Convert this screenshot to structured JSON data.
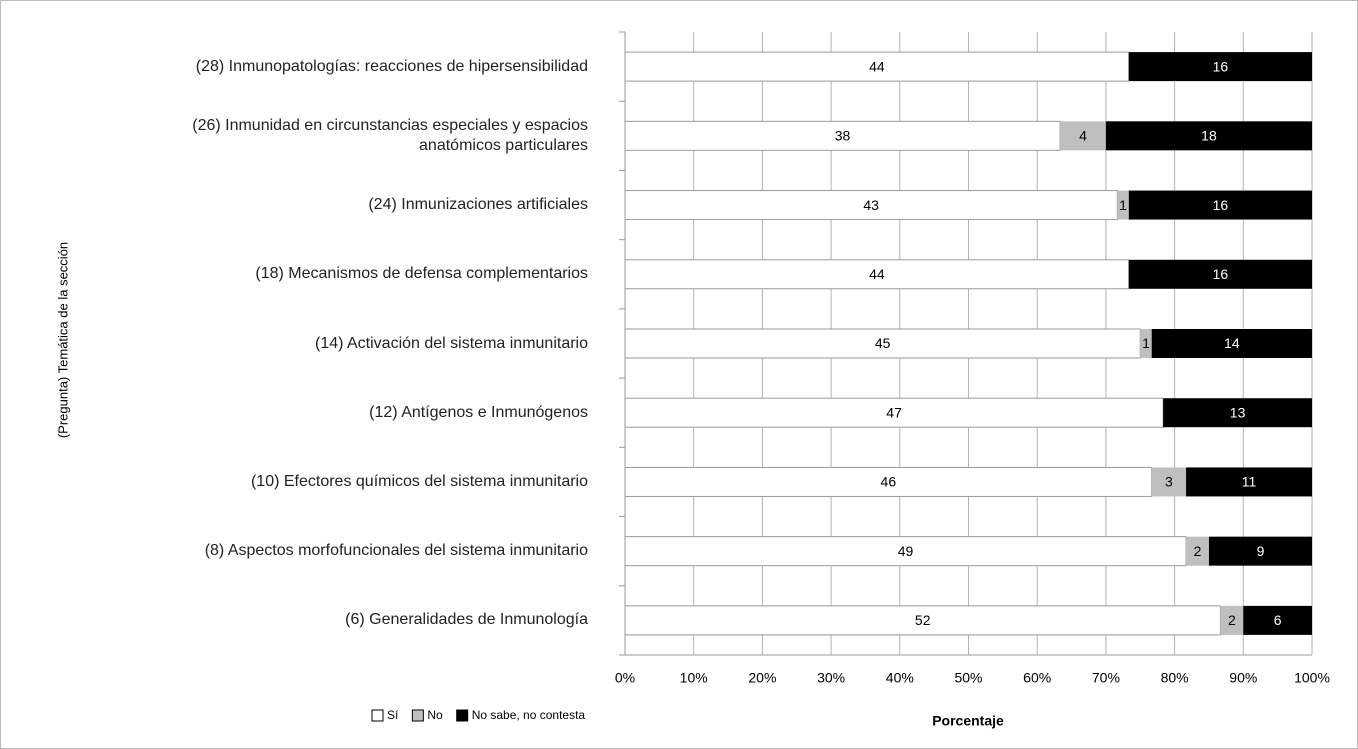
{
  "chart_data": {
    "type": "bar",
    "orientation": "horizontal",
    "stacking": "percent",
    "x_label": "Porcentaje",
    "y_label": "(Pregunta) Temática de la sección",
    "categories": [
      "(28) Inmunopatologías: reacciones de hipersensibilidad",
      "(26) Inmunidad en circunstancias especiales y espacios\nanatómicos particulares",
      "(24) Inmunizaciones artificiales",
      "(18) Mecanismos de defensa complementarios",
      "(14) Activación del sistema inmunitario",
      "(12) Antígenos e Inmunógenos",
      "(10) Efectores químicos del sistema inmunitario",
      "(8) Aspectos morfofuncionales del sistema inmunitario",
      "(6) Generalidades de Inmunología"
    ],
    "series": [
      {
        "name": "Sí",
        "color": "#ffffff",
        "label_color": "#000000",
        "values": [
          44,
          38,
          43,
          44,
          45,
          47,
          46,
          49,
          52
        ]
      },
      {
        "name": "No",
        "color": "#bfbfbf",
        "label_color": "#000000",
        "values": [
          0,
          4,
          1,
          0,
          1,
          0,
          3,
          2,
          2
        ]
      },
      {
        "name": "No sabe, no contesta",
        "color": "#000000",
        "label_color": "#ffffff",
        "values": [
          16,
          18,
          16,
          16,
          14,
          13,
          11,
          9,
          6
        ]
      }
    ],
    "xlim": [
      0,
      100
    ],
    "xticks": [
      {
        "value": 0,
        "label": "0%"
      },
      {
        "value": 10,
        "label": "10%"
      },
      {
        "value": 20,
        "label": "20%"
      },
      {
        "value": 30,
        "label": "30%"
      },
      {
        "value": 40,
        "label": "40%"
      },
      {
        "value": 50,
        "label": "50%"
      },
      {
        "value": 60,
        "label": "60%"
      },
      {
        "value": 70,
        "label": "70%"
      },
      {
        "value": 80,
        "label": "80%"
      },
      {
        "value": 90,
        "label": "90%"
      },
      {
        "value": 100,
        "label": "100%"
      }
    ],
    "grid": true,
    "legend": "bottom-left"
  }
}
